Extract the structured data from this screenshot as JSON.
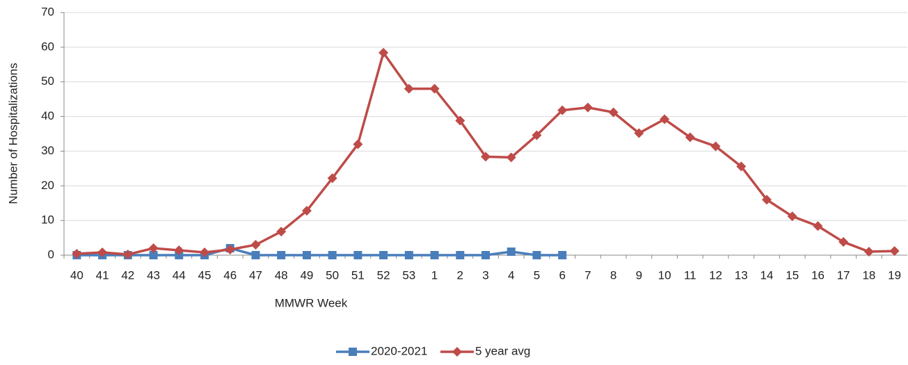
{
  "chart_data": {
    "type": "line",
    "x_label": "MMWR Week",
    "y_label": "Number of Hospitalizations",
    "categories": [
      "40",
      "41",
      "42",
      "43",
      "44",
      "45",
      "46",
      "47",
      "48",
      "49",
      "50",
      "51",
      "52",
      "53",
      "1",
      "2",
      "3",
      "4",
      "5",
      "6",
      "7",
      "8",
      "9",
      "10",
      "11",
      "12",
      "13",
      "14",
      "15",
      "16",
      "17",
      "18",
      "19"
    ],
    "series": [
      {
        "name": "2020-2021",
        "color": "#4a7ebb",
        "marker": "square",
        "values": [
          0,
          0,
          0,
          0,
          0,
          0,
          2,
          0,
          0,
          0,
          0,
          0,
          0,
          0,
          0,
          0,
          0,
          1,
          0,
          0,
          null,
          null,
          null,
          null,
          null,
          null,
          null,
          null,
          null,
          null,
          null,
          null,
          null
        ]
      },
      {
        "name": "5 year avg",
        "color": "#be4b48",
        "marker": "diamond",
        "values": [
          0.4,
          0.8,
          0.2,
          2,
          1.4,
          0.8,
          1.6,
          3,
          6.8,
          12.8,
          22.2,
          32,
          58.4,
          48,
          48,
          38.8,
          28.4,
          28.2,
          34.6,
          41.8,
          42.6,
          41.2,
          35.2,
          39.2,
          34,
          31.4,
          25.6,
          16,
          11.2,
          8.4,
          3.8,
          1,
          1.2
        ]
      }
    ],
    "ylim": [
      0,
      70
    ],
    "yticks": [
      0,
      10,
      20,
      30,
      40,
      50,
      60,
      70
    ],
    "grid": true,
    "legend": "bottom"
  }
}
